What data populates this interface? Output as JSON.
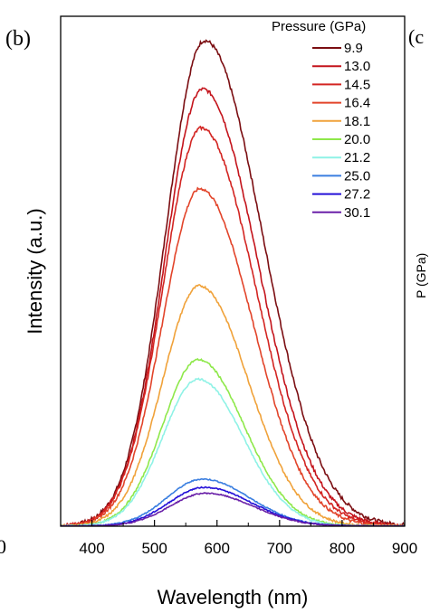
{
  "chart_data": {
    "type": "line",
    "panel_label": "(b)",
    "xlabel": "Wavelength (nm)",
    "ylabel": "Intensity (a.u.)",
    "xlim": [
      350,
      900
    ],
    "ylim": [
      0,
      1.05
    ],
    "x_ticks": [
      400,
      500,
      600,
      700,
      800,
      900
    ],
    "x_tick_labels": [
      "400",
      "500",
      "600",
      "700",
      "800",
      "900"
    ],
    "y_ticks": [],
    "legend_title": "Pressure (GPa)",
    "legend_position": "top-right",
    "edge_fragments": {
      "left_tick": "0",
      "next_panel_label": "(c",
      "next_panel_axis": "P    (GPa)"
    },
    "series": [
      {
        "name": "9.9",
        "color": "#7b0e12",
        "peak_x": 580,
        "amplitude": 1.0,
        "sigma_left": 62,
        "sigma_right": 92
      },
      {
        "name": "13.0",
        "color": "#c4141c",
        "peak_x": 577,
        "amplitude": 0.9,
        "sigma_left": 61,
        "sigma_right": 88
      },
      {
        "name": "14.5",
        "color": "#d32522",
        "peak_x": 575,
        "amplitude": 0.82,
        "sigma_left": 61,
        "sigma_right": 86
      },
      {
        "name": "16.4",
        "color": "#e2442a",
        "peak_x": 573,
        "amplitude": 0.695,
        "sigma_left": 60,
        "sigma_right": 84
      },
      {
        "name": "18.1",
        "color": "#f0a23a",
        "peak_x": 572,
        "amplitude": 0.495,
        "sigma_left": 59,
        "sigma_right": 78
      },
      {
        "name": "20.0",
        "color": "#8ee84a",
        "peak_x": 570,
        "amplitude": 0.343,
        "sigma_left": 57,
        "sigma_right": 73
      },
      {
        "name": "21.2",
        "color": "#8ff2e6",
        "peak_x": 570,
        "amplitude": 0.303,
        "sigma_left": 57,
        "sigma_right": 72
      },
      {
        "name": "25.0",
        "color": "#3a7ee0",
        "peak_x": 577,
        "amplitude": 0.097,
        "sigma_left": 57,
        "sigma_right": 75
      },
      {
        "name": "27.2",
        "color": "#2410d8",
        "peak_x": 580,
        "amplitude": 0.08,
        "sigma_left": 57,
        "sigma_right": 75
      },
      {
        "name": "30.1",
        "color": "#6a20a8",
        "peak_x": 582,
        "amplitude": 0.068,
        "sigma_left": 57,
        "sigma_right": 75
      }
    ]
  }
}
